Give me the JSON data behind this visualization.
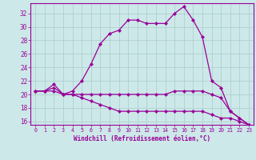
{
  "xlabel": "Windchill (Refroidissement éolien,°C)",
  "background_color": "#cce8e8",
  "grid_color": "#aacccc",
  "line_color": "#990099",
  "xlim": [
    -0.5,
    23.5
  ],
  "ylim": [
    15.5,
    33.5
  ],
  "yticks": [
    16,
    18,
    20,
    22,
    24,
    26,
    28,
    30,
    32
  ],
  "xticks": [
    0,
    1,
    2,
    3,
    4,
    5,
    6,
    7,
    8,
    9,
    10,
    11,
    12,
    13,
    14,
    15,
    16,
    17,
    18,
    19,
    20,
    21,
    22,
    23
  ],
  "s1": [
    20.5,
    20.5,
    21.5,
    20.0,
    20.5,
    22.0,
    24.5,
    27.5,
    29.0,
    29.5,
    31.0,
    31.0,
    30.5,
    30.5,
    30.5,
    32.0,
    33.0,
    31.0,
    28.5,
    22.0,
    21.0,
    17.5,
    16.5,
    15.5
  ],
  "s2": [
    20.5,
    20.5,
    21.0,
    20.0,
    20.0,
    20.0,
    20.0,
    20.0,
    20.0,
    20.0,
    20.0,
    20.0,
    20.0,
    20.0,
    20.0,
    20.5,
    20.5,
    20.5,
    20.5,
    20.0,
    19.5,
    17.5,
    16.5,
    15.5
  ],
  "s3": [
    20.5,
    20.5,
    20.5,
    20.0,
    20.0,
    19.5,
    19.0,
    18.5,
    18.0,
    17.5,
    17.5,
    17.5,
    17.5,
    17.5,
    17.5,
    17.5,
    17.5,
    17.5,
    17.5,
    17.0,
    16.5,
    16.5,
    16.0,
    15.5
  ]
}
